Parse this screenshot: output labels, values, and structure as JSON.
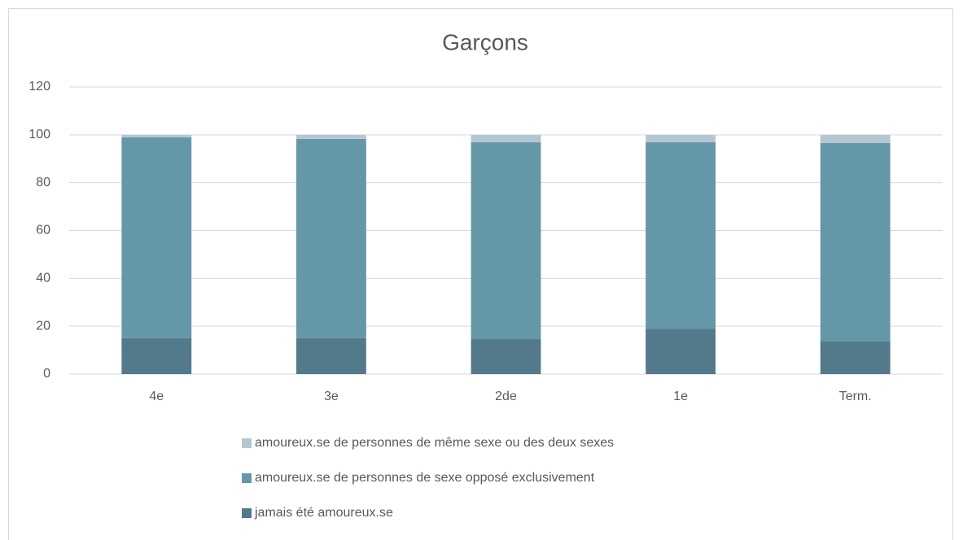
{
  "chart_data": {
    "type": "stacked_bar",
    "title": "Garçons",
    "categories": [
      "4e",
      "3e",
      "2de",
      "1e",
      "Term."
    ],
    "series": [
      {
        "name": "jamais été amoureux.se",
        "color": "#527a8a",
        "values": [
          15,
          15,
          14.6,
          19,
          13.6
        ]
      },
      {
        "name": "amoureux.se de personnes de sexe opposé exclusivement",
        "color": "#6497a8",
        "values": [
          84,
          83.3,
          82.3,
          77.9,
          83
        ]
      },
      {
        "name": "amoureux.se de personnes de même sexe ou des deux sexes",
        "color": "#b4c7d0",
        "values": [
          1,
          1.7,
          3.1,
          3.1,
          3.4
        ]
      }
    ],
    "ylim": [
      0,
      120
    ],
    "yticks": [
      0,
      20,
      40,
      60,
      80,
      100,
      120
    ],
    "grid": true
  }
}
